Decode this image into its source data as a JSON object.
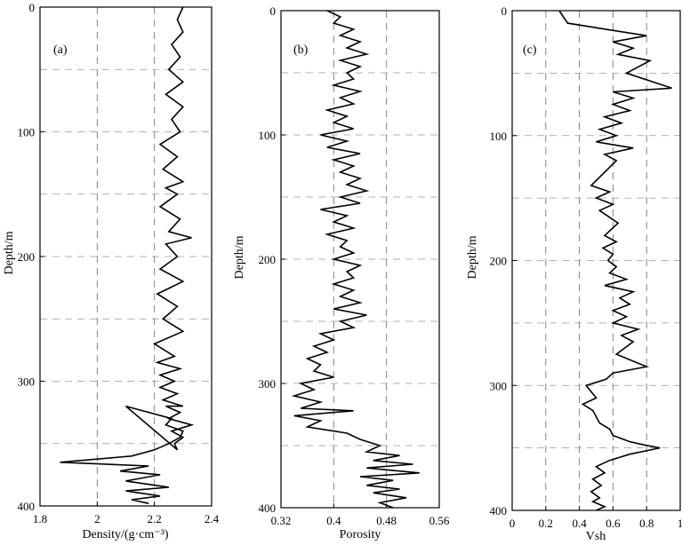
{
  "chart_data": [
    {
      "type": "line",
      "panel_label": "(a)",
      "xlabel": "Density/(g·cm⁻³)",
      "ylabel": "Depth/m",
      "xlim": [
        1.8,
        2.4
      ],
      "ylim": [
        0,
        400
      ],
      "y_inverted": true,
      "grid": true,
      "xticks": [
        1.8,
        2,
        2.2,
        2.4
      ],
      "xtick_labels": [
        "1.8",
        "2",
        "2.2",
        "2.4"
      ],
      "yticks": [
        0,
        100,
        200,
        300,
        400
      ],
      "ytick_labels": [
        "0",
        "100",
        "200",
        "300",
        "400"
      ],
      "series": [
        {
          "x": [
            2.3,
            2.28,
            2.3,
            2.26,
            2.29,
            2.25,
            2.3,
            2.24,
            2.3,
            2.26,
            2.29,
            2.22,
            2.28,
            2.23,
            2.3,
            2.24,
            2.28,
            2.22,
            2.29,
            2.25,
            2.33,
            2.24,
            2.28,
            2.22,
            2.3,
            2.21,
            2.28,
            2.23,
            2.3,
            2.2,
            2.27,
            2.21,
            2.29,
            2.22,
            2.27,
            2.22,
            2.28,
            2.23,
            2.3,
            2.24,
            2.29,
            2.25,
            2.33,
            2.26,
            2.3,
            2.27,
            2.28,
            2.1,
            2.26,
            2.24,
            2.3,
            2.29,
            2.25,
            2.2,
            2.12,
            1.87,
            2.18,
            2.08,
            2.22,
            2.1,
            2.25,
            2.1,
            2.22,
            2.12,
            2.18
          ],
          "y": [
            0,
            10,
            20,
            30,
            40,
            50,
            60,
            70,
            80,
            90,
            100,
            110,
            120,
            130,
            140,
            145,
            150,
            160,
            170,
            180,
            185,
            190,
            200,
            210,
            220,
            230,
            240,
            250,
            260,
            270,
            280,
            285,
            290,
            295,
            300,
            305,
            310,
            315,
            320,
            320,
            325,
            330,
            335,
            340,
            345,
            350,
            355,
            320,
            330,
            335,
            340,
            345,
            350,
            355,
            360,
            365,
            368,
            372,
            375,
            380,
            385,
            388,
            392,
            395,
            398
          ]
        }
      ]
    },
    {
      "type": "line",
      "panel_label": "(b)",
      "xlabel": "Porosity",
      "ylabel": "Depth/m",
      "xlim": [
        0.32,
        0.56
      ],
      "ylim": [
        0,
        400
      ],
      "y_inverted": true,
      "grid": true,
      "xticks": [
        0.32,
        0.4,
        0.48,
        0.56
      ],
      "xtick_labels": [
        "0.32",
        "0.4",
        "0.48",
        "0.56"
      ],
      "yticks": [
        0,
        100,
        200,
        300,
        400
      ],
      "ytick_labels": [
        "0",
        "100",
        "200",
        "300",
        "400"
      ],
      "series": [
        {
          "x": [
            0.39,
            0.41,
            0.4,
            0.43,
            0.41,
            0.44,
            0.42,
            0.45,
            0.41,
            0.44,
            0.42,
            0.43,
            0.4,
            0.44,
            0.41,
            0.43,
            0.39,
            0.42,
            0.4,
            0.43,
            0.38,
            0.42,
            0.39,
            0.44,
            0.4,
            0.43,
            0.41,
            0.44,
            0.42,
            0.45,
            0.41,
            0.44,
            0.38,
            0.42,
            0.4,
            0.43,
            0.39,
            0.42,
            0.41,
            0.43,
            0.4,
            0.44,
            0.42,
            0.43,
            0.4,
            0.43,
            0.41,
            0.44,
            0.4,
            0.45,
            0.41,
            0.43,
            0.38,
            0.4,
            0.37,
            0.39,
            0.36,
            0.38,
            0.37,
            0.4,
            0.35,
            0.37,
            0.34,
            0.38,
            0.35,
            0.43,
            0.34,
            0.38,
            0.36,
            0.42,
            0.44,
            0.47,
            0.45,
            0.5,
            0.46,
            0.52,
            0.45,
            0.53,
            0.44,
            0.49,
            0.45,
            0.5,
            0.46,
            0.51,
            0.47,
            0.49
          ],
          "y": [
            0,
            5,
            10,
            15,
            20,
            25,
            30,
            35,
            40,
            45,
            50,
            55,
            60,
            65,
            70,
            75,
            80,
            85,
            90,
            95,
            100,
            105,
            110,
            115,
            120,
            125,
            130,
            135,
            140,
            145,
            150,
            155,
            160,
            165,
            170,
            175,
            180,
            185,
            190,
            195,
            200,
            205,
            210,
            215,
            220,
            225,
            230,
            235,
            240,
            245,
            250,
            255,
            260,
            265,
            270,
            275,
            280,
            285,
            290,
            295,
            300,
            305,
            310,
            315,
            320,
            322,
            326,
            330,
            335,
            340,
            345,
            350,
            355,
            358,
            362,
            365,
            368,
            372,
            375,
            378,
            382,
            385,
            388,
            392,
            396,
            400
          ]
        }
      ]
    },
    {
      "type": "line",
      "panel_label": "(c)",
      "xlabel": "Vsh",
      "ylabel": "Depth/m",
      "xlim": [
        0,
        1
      ],
      "ylim": [
        0,
        400
      ],
      "y_inverted": true,
      "grid": true,
      "xticks": [
        0,
        0.2,
        0.4,
        0.6,
        0.8,
        1
      ],
      "xtick_labels": [
        "0",
        "0.2",
        "0.4",
        "0.6",
        "0.8",
        "1"
      ],
      "yticks": [
        0,
        100,
        200,
        300,
        400
      ],
      "ytick_labels": [
        "0",
        "100",
        "200",
        "300",
        "400"
      ],
      "series": [
        {
          "x": [
            0.28,
            0.33,
            0.56,
            0.8,
            0.6,
            0.72,
            0.63,
            0.82,
            0.68,
            0.95,
            0.6,
            0.72,
            0.6,
            0.7,
            0.55,
            0.65,
            0.52,
            0.62,
            0.5,
            0.72,
            0.55,
            0.62,
            0.47,
            0.58,
            0.5,
            0.6,
            0.52,
            0.63,
            0.55,
            0.62,
            0.54,
            0.6,
            0.57,
            0.62,
            0.58,
            0.68,
            0.55,
            0.72,
            0.64,
            0.7,
            0.6,
            0.68,
            0.6,
            0.75,
            0.65,
            0.72,
            0.62,
            0.8,
            0.6,
            0.56,
            0.44,
            0.5,
            0.42,
            0.48,
            0.52,
            0.58,
            0.6,
            0.7,
            0.8,
            0.88,
            0.7,
            0.58,
            0.5,
            0.55,
            0.48,
            0.53,
            0.47,
            0.52,
            0.48,
            0.55,
            0.5
          ],
          "y": [
            0,
            10,
            15,
            20,
            25,
            30,
            35,
            40,
            50,
            62,
            65,
            70,
            75,
            80,
            85,
            90,
            95,
            100,
            105,
            110,
            115,
            120,
            140,
            145,
            150,
            155,
            160,
            170,
            180,
            185,
            190,
            195,
            200,
            205,
            210,
            215,
            220,
            225,
            230,
            235,
            240,
            245,
            250,
            255,
            260,
            265,
            275,
            285,
            290,
            295,
            300,
            310,
            315,
            320,
            330,
            335,
            340,
            345,
            348,
            350,
            355,
            360,
            365,
            370,
            375,
            380,
            385,
            390,
            393,
            397,
            400
          ]
        }
      ]
    }
  ]
}
